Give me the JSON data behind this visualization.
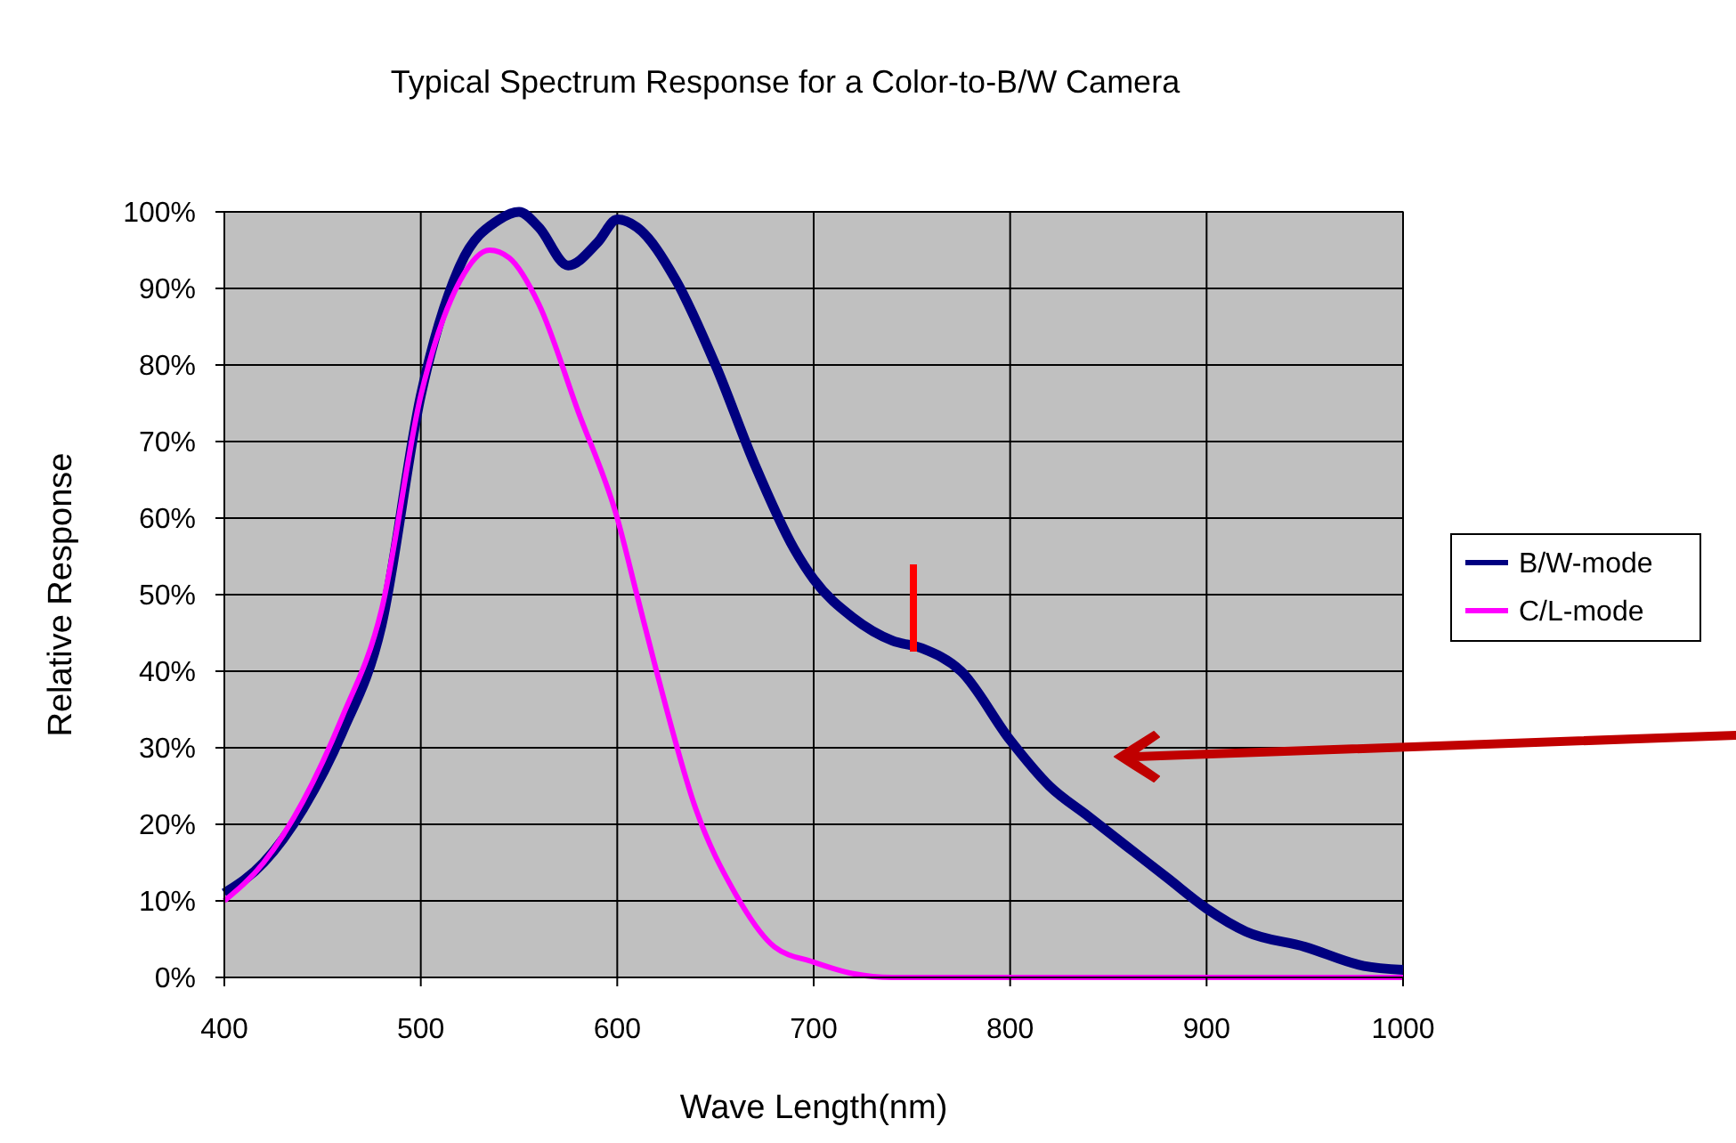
{
  "chart_data": {
    "type": "line",
    "title": "Typical Spectrum Response for a Color-to-B/W Camera",
    "xlabel": "Wave Length(nm)",
    "ylabel": "Relative Response",
    "xlim": [
      400,
      1000
    ],
    "xticks": [
      400,
      500,
      600,
      700,
      800,
      900,
      1000
    ],
    "ylim": [
      0,
      100
    ],
    "yticks": [
      {
        "value": 0,
        "label": "0%"
      },
      {
        "value": 10,
        "label": "10%"
      },
      {
        "value": 20,
        "label": "20%"
      },
      {
        "value": 30,
        "label": "30%"
      },
      {
        "value": 40,
        "label": "40%"
      },
      {
        "value": 50,
        "label": "50%"
      },
      {
        "value": 60,
        "label": "60%"
      },
      {
        "value": 70,
        "label": "70%"
      },
      {
        "value": 80,
        "label": "80%"
      },
      {
        "value": 90,
        "label": "90%"
      },
      {
        "value": 100,
        "label": "100%"
      }
    ],
    "grid": true,
    "legend": "right",
    "line_style": "solid",
    "series": [
      {
        "name": "B/W-mode",
        "color": "#000080",
        "x": [
          400,
          420,
          440,
          460,
          480,
          500,
          520,
          540,
          550,
          560,
          575,
          590,
          600,
          610,
          630,
          650,
          670,
          690,
          700,
          720,
          740,
          755,
          775,
          800,
          820,
          840,
          860,
          880,
          900,
          920,
          950,
          980,
          1000
        ],
        "values": [
          11,
          15,
          22,
          32,
          46,
          76,
          93,
          99,
          100,
          98,
          93,
          96,
          99,
          98,
          91,
          80,
          67,
          56,
          52,
          47,
          44,
          43,
          40,
          31,
          25,
          21,
          17,
          13,
          9,
          6,
          4,
          1.5,
          1
        ]
      },
      {
        "name": "C/L-mode",
        "color": "#ff00ff",
        "x": [
          400,
          420,
          440,
          460,
          480,
          500,
          520,
          535,
          545,
          560,
          580,
          600,
          610,
          620,
          640,
          660,
          680,
          700,
          720,
          740,
          760,
          800,
          900,
          1000
        ],
        "values": [
          10,
          15,
          23,
          34,
          48,
          76,
          91,
          95,
          94,
          88,
          74,
          60,
          50,
          40,
          22,
          11,
          4,
          2,
          0.5,
          0,
          0,
          0,
          0,
          0
        ]
      }
    ]
  }
}
